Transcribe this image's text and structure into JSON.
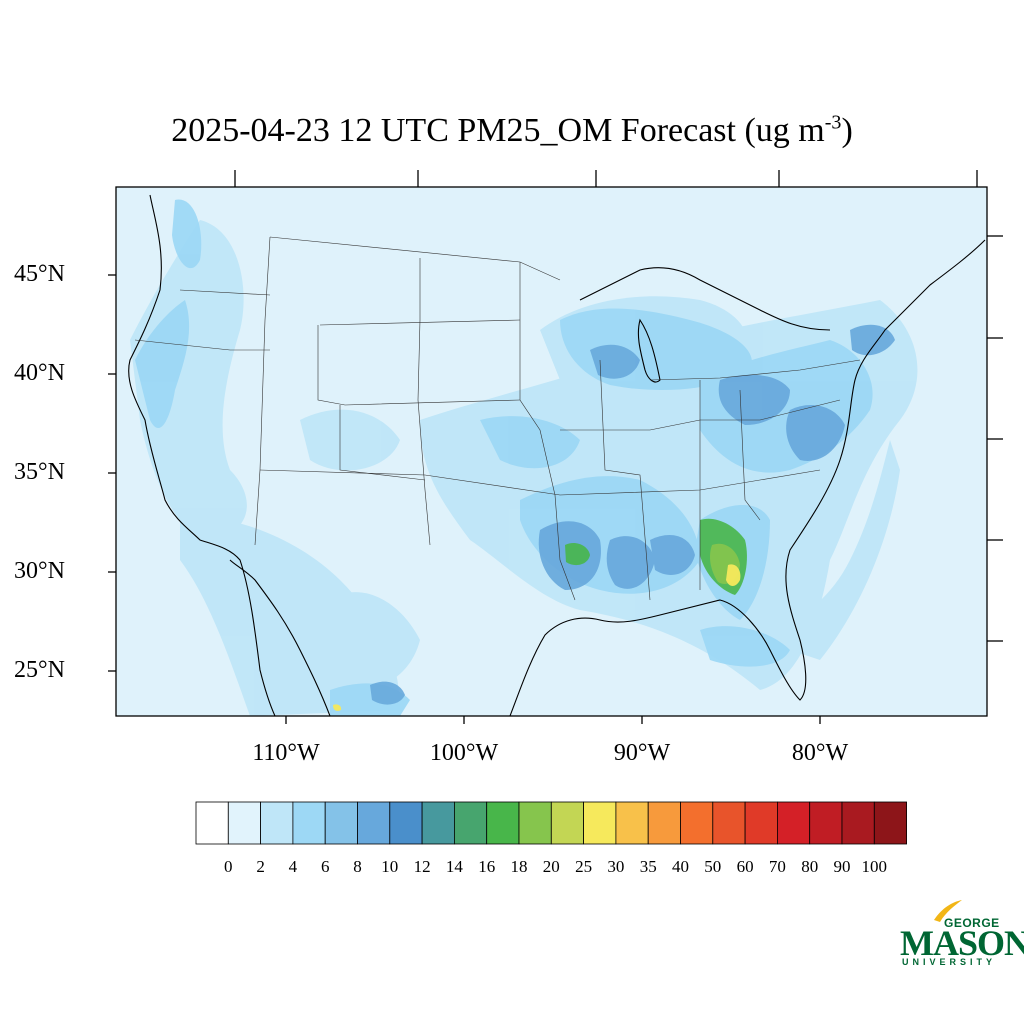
{
  "title": {
    "main": "2025-04-23 12 UTC PM25_OM Forecast (ug m",
    "exponent": "-3",
    "close": ")"
  },
  "map": {
    "lat_labels": [
      "45°N",
      "40°N",
      "35°N",
      "30°N",
      "25°N"
    ],
    "lon_labels": [
      "110°W",
      "100°W",
      "90°W",
      "80°W"
    ],
    "background_color": "#dff2fb"
  },
  "colorbar": {
    "labels": [
      "0",
      "2",
      "4",
      "6",
      "8",
      "10",
      "12",
      "14",
      "16",
      "18",
      "20",
      "25",
      "30",
      "35",
      "40",
      "50",
      "60",
      "70",
      "80",
      "90",
      "100"
    ],
    "colors": [
      "#ffffff",
      "#e1f3fc",
      "#bfe6f8",
      "#9dd8f5",
      "#84c2e8",
      "#67a8dc",
      "#4a8fcb",
      "#47999e",
      "#47a56e",
      "#48b64a",
      "#86c54d",
      "#c3d654",
      "#f6e95c",
      "#f8c14a",
      "#f79a3c",
      "#f36f2d",
      "#e8542b",
      "#e03a28",
      "#d42027",
      "#c01d24",
      "#a91a20",
      "#8d1519"
    ]
  },
  "logo": {
    "top": "GEORGE",
    "main": "MASON",
    "bottom": "UNIVERSITY",
    "color": "#006633",
    "accent_color": "#f2b616"
  }
}
